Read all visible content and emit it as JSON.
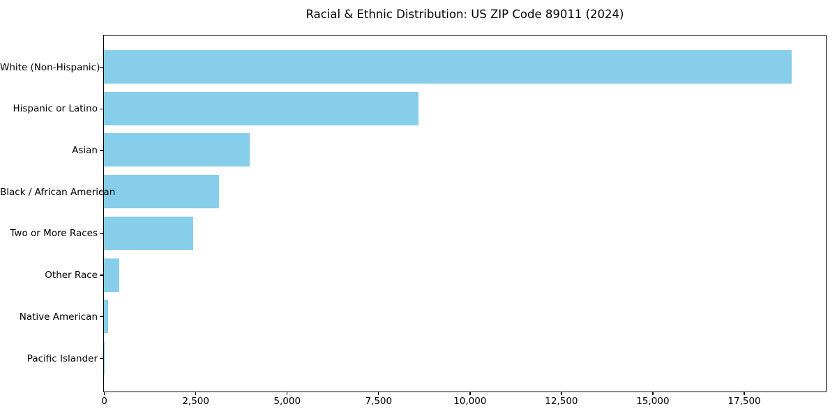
{
  "chart_data": {
    "type": "bar",
    "orientation": "horizontal",
    "title": "Racial & Ethnic Distribution: US ZIP Code 89011 (2024)",
    "categories": [
      "White (Non-Hispanic)",
      "Hispanic or Latino",
      "Asian",
      "Black / African American",
      "Two or More Races",
      "Other Race",
      "Native American",
      "Pacific Islander"
    ],
    "values": [
      18810,
      8600,
      3980,
      3150,
      2440,
      425,
      110,
      15
    ],
    "xlabel": "",
    "ylabel": "",
    "xlim": [
      0,
      19720
    ],
    "xticks": [
      0,
      2500,
      5000,
      7500,
      10000,
      12500,
      15000,
      17500
    ],
    "xtick_labels": [
      "0",
      "2,500",
      "5,000",
      "7,500",
      "10,000",
      "12,500",
      "15,000",
      "17,500"
    ],
    "bar_color": "#87CEEB",
    "text_color": "#000000",
    "grid": false,
    "legend": null
  }
}
